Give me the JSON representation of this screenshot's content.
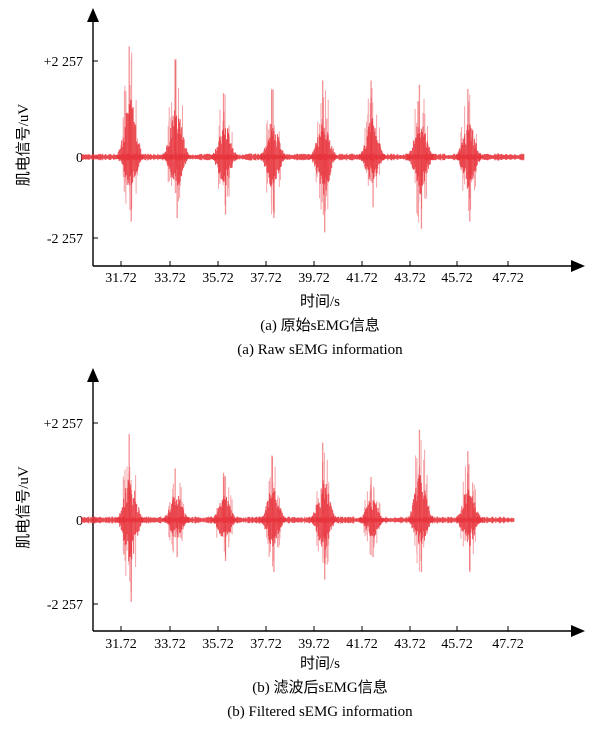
{
  "chart_data": [
    {
      "type": "line",
      "title": "(a) 原始sEMG信息",
      "subtitle": "(a) Raw sEMG information",
      "xlabel": "时间/s",
      "ylabel": "肌电信号/uV",
      "x_ticks": [
        "31.72",
        "33.72",
        "35.72",
        "37.72",
        "39.72",
        "41.72",
        "43.72",
        "45.72",
        "47.72"
      ],
      "y_ticks": [
        "+2 257",
        "0",
        "-2 257"
      ],
      "xlim": [
        30.0,
        50.0
      ],
      "ylim": [
        -3100,
        3100
      ],
      "series_color": "#e8343c",
      "signal_x_range": [
        30.1,
        48.4
      ],
      "bursts": [
        {
          "center": 32.1,
          "max": 2600,
          "min": -1800
        },
        {
          "center": 34.0,
          "max": 2300,
          "min": -1700
        },
        {
          "center": 36.0,
          "max": 1500,
          "min": -1600
        },
        {
          "center": 38.0,
          "max": 1600,
          "min": -1700
        },
        {
          "center": 40.1,
          "max": 1800,
          "min": -2100
        },
        {
          "center": 42.1,
          "max": 1800,
          "min": -1400
        },
        {
          "center": 44.1,
          "max": 1700,
          "min": -2000
        },
        {
          "center": 46.1,
          "max": 1600,
          "min": -1800
        }
      ]
    },
    {
      "type": "line",
      "title": "(b) 滤波后sEMG信息",
      "subtitle": "(b) Filtered sEMG information",
      "xlabel": "时间/s",
      "ylabel": "肌电信号/uV",
      "x_ticks": [
        "31.72",
        "33.72",
        "35.72",
        "37.72",
        "39.72",
        "41.72",
        "43.72",
        "45.72",
        "47.72"
      ],
      "y_ticks": [
        "+2 257",
        "0",
        "-2 257"
      ],
      "xlim": [
        30.0,
        50.0
      ],
      "ylim": [
        -3100,
        3100
      ],
      "series_color": "#e8343c",
      "signal_x_range": [
        30.1,
        48.0
      ],
      "bursts": [
        {
          "center": 32.1,
          "max": 2000,
          "min": -2200
        },
        {
          "center": 34.0,
          "max": 1200,
          "min": -1000
        },
        {
          "center": 36.0,
          "max": 1100,
          "min": -1100
        },
        {
          "center": 38.0,
          "max": 1500,
          "min": -1400
        },
        {
          "center": 40.1,
          "max": 1800,
          "min": -1600
        },
        {
          "center": 42.1,
          "max": 1000,
          "min": -1000
        },
        {
          "center": 44.1,
          "max": 2100,
          "min": -1400
        },
        {
          "center": 46.1,
          "max": 1600,
          "min": -1400
        }
      ]
    }
  ]
}
